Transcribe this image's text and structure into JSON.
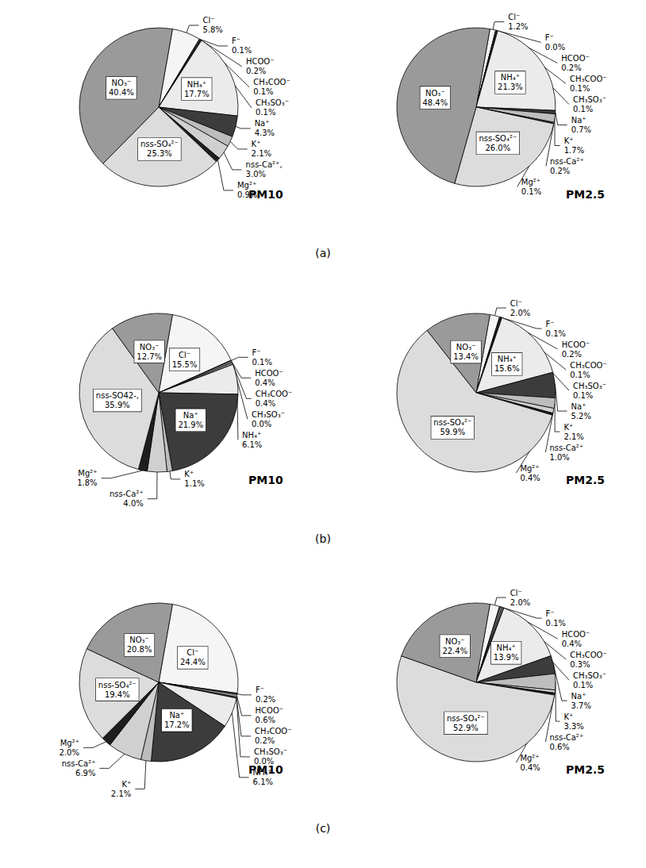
{
  "chart_data": [
    {
      "type": "pie",
      "title": "PM10",
      "annotations": [
        "(a)"
      ],
      "data_labels": true,
      "categories": [
        "Cl⁻",
        "F⁻",
        "HCOO⁻",
        "CH₃COO⁻",
        "CH₃SO₃⁻",
        "NH₄⁺",
        "Na⁺",
        "K⁺",
        "nss-Ca²⁺,",
        "Mg²⁺",
        "nss-SO₄²⁻",
        "NO₃⁻"
      ],
      "values": [
        5.8,
        0.1,
        0.2,
        0.1,
        0.1,
        17.7,
        4.3,
        2.1,
        3.0,
        0.9,
        25.3,
        40.4
      ],
      "value_labels": [
        "5.8%",
        "0.1%",
        "0.2%",
        "0.1%",
        "0.1%",
        "17.7%",
        "4.3%",
        "2.1%",
        "3.0%",
        "0.9%",
        "25.3%",
        "40.4%"
      ],
      "colors": [
        "#f5f5f5",
        "#666666",
        "#888888",
        "#aaaaaa",
        "#c4c4c4",
        "#ebebeb",
        "#3c3c3c",
        "#bdbdbd",
        "#d0d0d0",
        "#1e1e1e",
        "#dcdcdc",
        "#9a9a9a"
      ]
    },
    {
      "type": "pie",
      "title": "PM2.5",
      "data_labels": true,
      "categories": [
        "Cl⁻",
        "F⁻",
        "HCOO⁻",
        "CH₃COO⁻",
        "CH₃SO₃⁻",
        "NH₄⁺",
        "Na⁺",
        "K⁺",
        "nss-Ca²⁺",
        "Mg²⁺",
        "nss-SO₄²⁻",
        "NO₃⁻"
      ],
      "values": [
        1.2,
        0.0,
        0.2,
        0.1,
        0.1,
        21.3,
        0.7,
        1.7,
        0.2,
        0.1,
        26.0,
        48.4
      ],
      "value_labels": [
        "1.2%",
        "0.0%",
        "0.2%",
        "0.1%",
        "0.1%",
        "21.3%",
        "0.7%",
        "1.7%",
        "0.2%",
        "0.1%",
        "26.0%",
        "48.4%"
      ],
      "colors": [
        "#f5f5f5",
        "#666666",
        "#888888",
        "#aaaaaa",
        "#c4c4c4",
        "#ebebeb",
        "#3c3c3c",
        "#bdbdbd",
        "#d0d0d0",
        "#1e1e1e",
        "#dcdcdc",
        "#9a9a9a"
      ]
    },
    {
      "type": "pie",
      "title": "PM10",
      "annotations": [
        "(b)"
      ],
      "data_labels": true,
      "categories": [
        "Cl⁻",
        "F⁻",
        "HCOO⁻",
        "CH₃COO⁻",
        "CH₃SO₃⁻",
        "NH₄⁺",
        "Na⁺",
        "K⁺",
        "nss-Ca²⁺",
        "Mg²⁺",
        "nss-SO42-,",
        "NO₃⁻"
      ],
      "values": [
        15.5,
        0.1,
        0.4,
        0.4,
        0.0,
        6.1,
        21.9,
        1.1,
        4.0,
        1.8,
        35.9,
        12.7
      ],
      "value_labels": [
        "15.5%",
        "0.1%",
        "0.4%",
        "0.4%",
        "0.0%",
        "6.1%",
        "21.9%",
        "1.1%",
        "4.0%",
        "1.8%",
        "35.9%",
        "12.7%"
      ],
      "colors": [
        "#f5f5f5",
        "#666666",
        "#888888",
        "#aaaaaa",
        "#c4c4c4",
        "#ebebeb",
        "#3c3c3c",
        "#bdbdbd",
        "#d0d0d0",
        "#1e1e1e",
        "#dcdcdc",
        "#9a9a9a"
      ]
    },
    {
      "type": "pie",
      "title": "PM2.5",
      "data_labels": true,
      "categories": [
        "Cl⁻",
        "F⁻",
        "HCOO⁻",
        "CH₃COO⁻",
        "CH₃SO₃⁻",
        "NH₄⁺",
        "Na⁺",
        "K⁺",
        "nss-Ca²⁺",
        "Mg²⁺",
        "nss-SO₄²⁻",
        "NO₃⁻"
      ],
      "values": [
        2.0,
        0.1,
        0.2,
        0.1,
        0.1,
        15.6,
        5.2,
        2.1,
        1.0,
        0.4,
        59.9,
        13.4
      ],
      "value_labels": [
        "2.0%",
        "0.1%",
        "0.2%",
        "0.1%",
        "0.1%",
        "15.6%",
        "5.2%",
        "2.1%",
        "1.0%",
        "0.4%",
        "59.9%",
        "13.4%"
      ],
      "colors": [
        "#f5f5f5",
        "#666666",
        "#888888",
        "#aaaaaa",
        "#c4c4c4",
        "#ebebeb",
        "#3c3c3c",
        "#bdbdbd",
        "#d0d0d0",
        "#1e1e1e",
        "#dcdcdc",
        "#9a9a9a"
      ]
    },
    {
      "type": "pie",
      "title": "PM10",
      "annotations": [
        "(c)"
      ],
      "data_labels": true,
      "categories": [
        "Cl⁻",
        "F⁻",
        "HCOO⁻",
        "CH₃COO⁻",
        "CH₃SO₃⁻",
        "NH₄⁺",
        "Na⁺",
        "K⁺",
        "nss-Ca²⁺",
        "Mg²⁺",
        "nss-SO₄²⁻",
        "NO₃⁻"
      ],
      "values": [
        24.4,
        0.2,
        0.6,
        0.2,
        0.0,
        6.1,
        17.2,
        2.1,
        6.9,
        2.0,
        19.4,
        20.8
      ],
      "value_labels": [
        "24.4%",
        "0.2%",
        "0.6%",
        "0.2%",
        "0.0%",
        "6.1%",
        "17.2%",
        "2.1%",
        "6.9%",
        "2.0%",
        "19.4%",
        "20.8%"
      ],
      "colors": [
        "#f5f5f5",
        "#666666",
        "#888888",
        "#aaaaaa",
        "#c4c4c4",
        "#ebebeb",
        "#3c3c3c",
        "#bdbdbd",
        "#d0d0d0",
        "#1e1e1e",
        "#dcdcdc",
        "#9a9a9a"
      ]
    },
    {
      "type": "pie",
      "title": "PM2.5",
      "data_labels": true,
      "categories": [
        "Cl⁻",
        "F⁻",
        "HCOO⁻",
        "CH₃COO⁻",
        "CH₃SO₃⁻",
        "NH₄⁺",
        "Na⁺",
        "K⁺",
        "nss-Ca²⁺",
        "Mg²⁺",
        "nss-SO₄²⁻",
        "NO₃⁻"
      ],
      "values": [
        2.0,
        0.1,
        0.4,
        0.3,
        0.1,
        13.9,
        3.7,
        3.3,
        0.6,
        0.4,
        52.9,
        22.4
      ],
      "value_labels": [
        "2.0%",
        "0.1%",
        "0.4%",
        "0.3%",
        "0.1%",
        "13.9%",
        "3.7%",
        "3.3%",
        "0.6%",
        "0.4%",
        "52.9%",
        "22.4%"
      ],
      "colors": [
        "#f5f5f5",
        "#666666",
        "#888888",
        "#aaaaaa",
        "#c4c4c4",
        "#ebebeb",
        "#3c3c3c",
        "#bdbdbd",
        "#d0d0d0",
        "#1e1e1e",
        "#dcdcdc",
        "#9a9a9a"
      ]
    }
  ]
}
